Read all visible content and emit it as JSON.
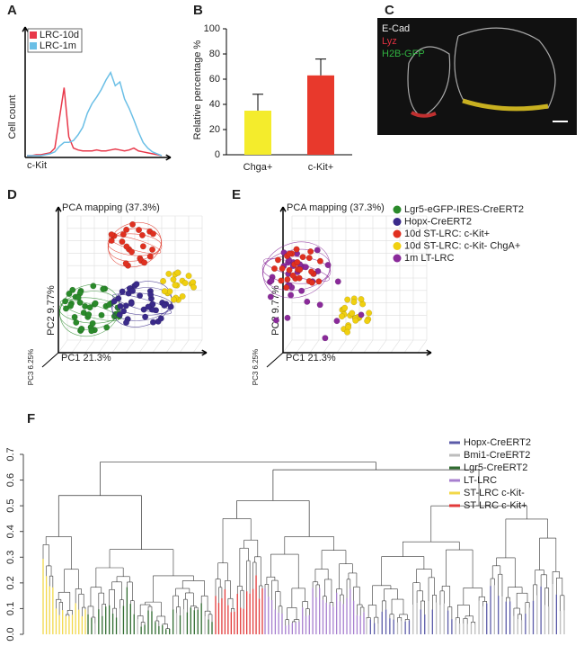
{
  "panel_labels": [
    "A",
    "B",
    "C",
    "D",
    "E",
    "F"
  ],
  "chart_data": [
    {
      "type": "line",
      "ylabel": "Cell count",
      "xlabel": "c-Kit",
      "ylim": [
        0,
        100
      ],
      "series": [
        {
          "name": "LRC-10d",
          "color": "#e8384a",
          "values": [
            0,
            0,
            1,
            1,
            2,
            3,
            8,
            40,
            72,
            20,
            8,
            6,
            5,
            5,
            5,
            6,
            5,
            5,
            6,
            7,
            6,
            5,
            6,
            8,
            5,
            4,
            3,
            2,
            1,
            0
          ]
        },
        {
          "name": "LRC-1m",
          "color": "#6bbfe6",
          "values": [
            0,
            0,
            0,
            0,
            1,
            2,
            4,
            10,
            14,
            14,
            16,
            22,
            30,
            45,
            55,
            62,
            70,
            80,
            88,
            74,
            78,
            60,
            50,
            38,
            25,
            14,
            8,
            4,
            2,
            0
          ]
        }
      ]
    },
    {
      "type": "bar",
      "ylabel": "Relative percentage %",
      "categories": [
        "Chga+",
        "c-Kit+"
      ],
      "values": [
        35,
        63
      ],
      "errors": [
        13,
        13
      ],
      "colors": [
        "#f4ec2c",
        "#e8392c"
      ],
      "ylim": [
        0,
        100
      ],
      "yticks": [
        0,
        20,
        40,
        60,
        80,
        100
      ]
    },
    {
      "type": "dendrogram",
      "ylim": [
        0,
        0.7
      ],
      "yticks": [
        {
          "value": 0,
          "label": "0.0"
        },
        0.1,
        0.2,
        0.3,
        0.4,
        0.5,
        0.6,
        0.7
      ],
      "series": [
        {
          "name": "Hopx-CreERT2",
          "color": "#5b5ba8"
        },
        {
          "name": "Bmi1-CreERT2",
          "color": "#bdbdbd"
        },
        {
          "name": "Lgr5-CreERT2",
          "color": "#2f6b2f"
        },
        {
          "name": "LT-LRC",
          "color": "#a77fcf"
        },
        {
          "name": "ST-LRC c-Kit-",
          "color": "#f2d84a"
        },
        {
          "name": "ST-LRC c-Kit+",
          "color": "#e23a3a"
        }
      ]
    }
  ],
  "image": {
    "labels": [
      "E-Cad",
      "Lyz",
      "H2B-GFP"
    ]
  },
  "pca": {
    "plots": [
      {
        "title": "PCA mapping (37.3%)",
        "y_axis": "PC2 9.77%",
        "x_axis": "PC1 21.3%",
        "z_axis": "PC3 6.25%"
      },
      {
        "title": "PCA mapping (37.3%)",
        "y_axis": "PC2 9.77%",
        "x_axis": "PC1 21.3%",
        "z_axis": "PC3 6.25%"
      }
    ],
    "legend": [
      {
        "name": "Lgr5-eGFP-IRES-CreERT2",
        "color": "#2a8a2a"
      },
      {
        "name": "Hopx-CreERT2",
        "color": "#3a2a8a"
      },
      {
        "name": "10d ST-LRC: c-Kit+",
        "color": "#e03020"
      },
      {
        "name": "10d ST-LRC: c-Kit- ChgA+",
        "color": "#f0d010"
      },
      {
        "name": "1m LT-LRC",
        "color": "#8a2a9a"
      }
    ]
  }
}
